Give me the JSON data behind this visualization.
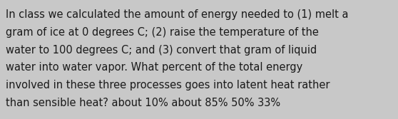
{
  "lines": [
    "In class we calculated the amount of energy needed to (1) melt a",
    "gram of ice at 0 degrees C; (2) raise the temperature of the",
    "water to 100 degrees C; and (3) convert that gram of liquid",
    "water into water vapor. What percent of the total energy",
    "involved in these three processes goes into latent heat rather",
    "than sensible heat? about 10% about 85% 50% 33%"
  ],
  "background_color": "#c8c8c8",
  "text_color": "#1a1a1a",
  "font_size": 10.5,
  "fig_width": 5.58,
  "fig_height": 1.67,
  "dpi": 100
}
